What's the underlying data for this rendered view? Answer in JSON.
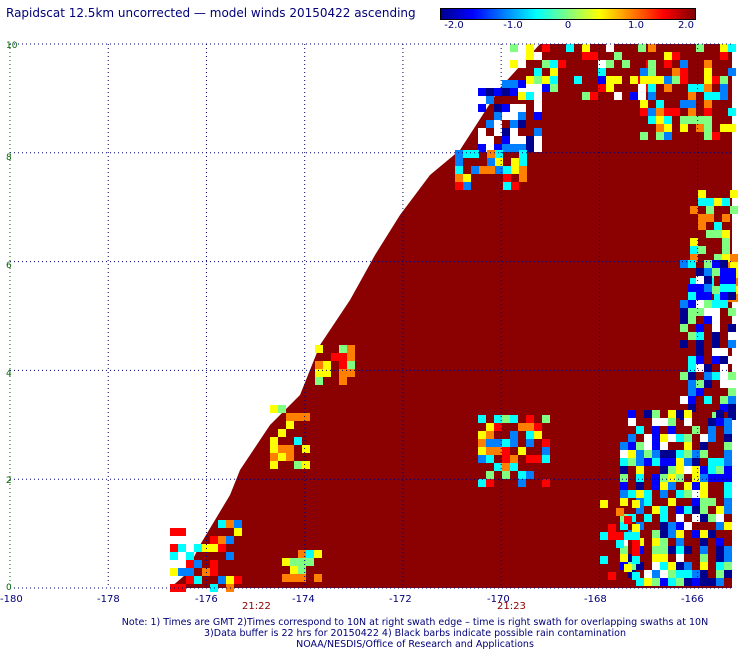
{
  "title": "Rapidscat 12.5km uncorrected — model winds 20150422 ascending",
  "colorbar": {
    "ticks": [
      "-2.0",
      "-1.0",
      "0",
      "1.0",
      "2.0"
    ],
    "min": -2.0,
    "max": 2.0,
    "colors": [
      "#00008f",
      "#0000ff",
      "#0080ff",
      "#00ffff",
      "#80ff80",
      "#ffff00",
      "#ff8000",
      "#ff0000",
      "#800000"
    ]
  },
  "map": {
    "x_ticks": [
      "-180",
      "-178",
      "-176",
      "-174",
      "-172",
      "-170",
      "-168",
      "-166"
    ],
    "y_ticks": [
      "0",
      "2",
      "4",
      "6",
      "8",
      "10"
    ],
    "lon_range": [
      -180,
      -165.3
    ],
    "lat_range": [
      0,
      10
    ],
    "swath_color": "#8b0000",
    "grid_color": "#000078",
    "lat_grid_color": "#006400"
  },
  "times": [
    {
      "label": "21:22",
      "lon": -175.3
    },
    {
      "label": "21:23",
      "lon": -169.8
    }
  ],
  "notes": [
    "Note: 1) Times are GMT 2)Times correspond to 10N at right swath edge – time is right swath for overlapping swaths at 10N",
    "3)Data buffer is 22 hrs for 20150422 4) Black barbs indicate possible rain contamination",
    "NOAA/NESDIS/Office of Research and Applications"
  ]
}
